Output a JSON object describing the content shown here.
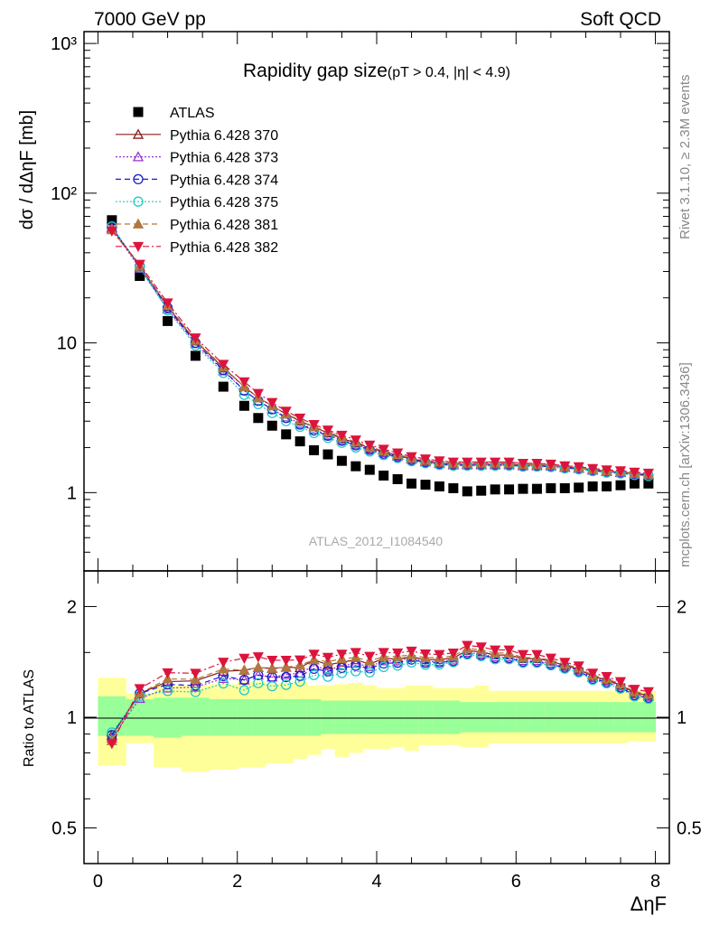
{
  "header": {
    "left": "7000 GeV pp",
    "right": "Soft QCD"
  },
  "side_labels": {
    "rivet": "Rivet 3.1.10, ≥ 2.3M events",
    "mcplots": "mcplots.cern.ch [arXiv:1306.3436]"
  },
  "watermark": "ATLAS_2012_I1084540",
  "chart_data": [
    {
      "type": "scatter",
      "title": "Rapidity gap size",
      "subtitle": "(pT > 0.4, |η| < 4.9)",
      "ylabel": "dσ / dΔηF [mb]",
      "xlabel": "ΔηF",
      "yscale": "log",
      "ylim": [
        0.3,
        1200
      ],
      "xlim": [
        -0.2,
        8.2
      ],
      "yticks": [
        {
          "value": 1,
          "label": "1"
        },
        {
          "value": 10,
          "label": "10"
        },
        {
          "value": 100,
          "label": "10²"
        },
        {
          "value": 1000,
          "label": "10³"
        }
      ],
      "legend_position": "top-left",
      "x": [
        0.2,
        0.6,
        1.0,
        1.4,
        1.8,
        2.1,
        2.3,
        2.5,
        2.7,
        2.9,
        3.1,
        3.3,
        3.5,
        3.7,
        3.9,
        4.1,
        4.3,
        4.5,
        4.7,
        4.9,
        5.1,
        5.3,
        5.5,
        5.7,
        5.9,
        6.1,
        6.3,
        6.5,
        6.7,
        6.9,
        7.1,
        7.3,
        7.5,
        7.7,
        7.9
      ],
      "series": [
        {
          "name": "ATLAS",
          "marker": "square",
          "color": "#000000",
          "line": "none",
          "values": [
            66,
            28,
            14,
            8.2,
            5.1,
            3.8,
            3.15,
            2.8,
            2.45,
            2.2,
            1.92,
            1.8,
            1.63,
            1.5,
            1.42,
            1.3,
            1.23,
            1.15,
            1.13,
            1.1,
            1.07,
            1.02,
            1.03,
            1.05,
            1.05,
            1.06,
            1.06,
            1.07,
            1.07,
            1.08,
            1.1,
            1.1,
            1.12,
            1.15,
            1.15
          ]
        },
        {
          "name": "Pythia 6.428 370",
          "marker": "triangle-open",
          "color": "#8b1a1a",
          "line": "solid",
          "values": [
            59,
            32.5,
            17.5,
            10.3,
            6.8,
            5.1,
            4.3,
            3.8,
            3.35,
            3.0,
            2.75,
            2.5,
            2.3,
            2.15,
            1.98,
            1.88,
            1.77,
            1.68,
            1.62,
            1.58,
            1.55,
            1.55,
            1.55,
            1.55,
            1.55,
            1.53,
            1.53,
            1.52,
            1.48,
            1.46,
            1.42,
            1.39,
            1.37,
            1.34,
            1.32
          ]
        },
        {
          "name": "Pythia 6.428 373",
          "marker": "triangle-open",
          "color": "#9932cc",
          "line": "dotted",
          "values": [
            58,
            31.5,
            16.8,
            9.9,
            6.5,
            4.8,
            4.1,
            3.6,
            3.2,
            2.9,
            2.65,
            2.42,
            2.25,
            2.1,
            1.95,
            1.85,
            1.75,
            1.67,
            1.6,
            1.56,
            1.53,
            1.53,
            1.53,
            1.53,
            1.53,
            1.51,
            1.51,
            1.5,
            1.47,
            1.45,
            1.41,
            1.38,
            1.36,
            1.33,
            1.31
          ]
        },
        {
          "name": "Pythia 6.428 374",
          "marker": "circle-open",
          "color": "#1a1acd",
          "line": "dashed",
          "values": [
            59,
            32.5,
            17.2,
            10.0,
            6.6,
            4.8,
            4.1,
            3.6,
            3.15,
            2.85,
            2.6,
            2.4,
            2.22,
            2.07,
            1.93,
            1.82,
            1.73,
            1.65,
            1.59,
            1.55,
            1.52,
            1.52,
            1.52,
            1.52,
            1.52,
            1.5,
            1.5,
            1.49,
            1.46,
            1.44,
            1.4,
            1.37,
            1.35,
            1.32,
            1.3
          ]
        },
        {
          "name": "Pythia 6.428 375",
          "marker": "circle-open",
          "color": "#20c8c8",
          "line": "dotted",
          "values": [
            60,
            32,
            16.5,
            9.6,
            6.3,
            4.5,
            3.9,
            3.4,
            3.0,
            2.75,
            2.5,
            2.32,
            2.15,
            2.0,
            1.88,
            1.78,
            1.7,
            1.62,
            1.57,
            1.53,
            1.51,
            1.51,
            1.51,
            1.51,
            1.51,
            1.49,
            1.49,
            1.48,
            1.45,
            1.43,
            1.39,
            1.36,
            1.34,
            1.31,
            1.29
          ]
        },
        {
          "name": "Pythia 6.428 381",
          "marker": "triangle",
          "color": "#b07840",
          "line": "dashed",
          "values": [
            57,
            32.5,
            17.8,
            10.4,
            6.9,
            5.1,
            4.3,
            3.8,
            3.35,
            3.05,
            2.75,
            2.55,
            2.35,
            2.18,
            2.02,
            1.9,
            1.8,
            1.7,
            1.64,
            1.6,
            1.57,
            1.57,
            1.57,
            1.57,
            1.57,
            1.54,
            1.54,
            1.53,
            1.49,
            1.47,
            1.43,
            1.4,
            1.38,
            1.35,
            1.33
          ]
        },
        {
          "name": "Pythia 6.428 382",
          "marker": "triangle-down",
          "color": "#dc143c",
          "line": "dashdot",
          "values": [
            56,
            33.5,
            18.5,
            10.8,
            7.2,
            5.5,
            4.6,
            4.0,
            3.5,
            3.15,
            2.85,
            2.62,
            2.42,
            2.25,
            2.08,
            1.95,
            1.84,
            1.74,
            1.68,
            1.63,
            1.6,
            1.6,
            1.6,
            1.6,
            1.6,
            1.57,
            1.57,
            1.55,
            1.51,
            1.49,
            1.45,
            1.42,
            1.4,
            1.37,
            1.35
          ]
        }
      ]
    },
    {
      "type": "scatter",
      "ylabel": "Ratio to ATLAS",
      "xlabel": "ΔηF",
      "yscale": "log",
      "ylim": [
        0.4,
        2.5
      ],
      "xlim": [
        -0.2,
        8.2
      ],
      "yticks": [
        {
          "value": 0.5,
          "label": "0.5"
        },
        {
          "value": 1,
          "label": "1"
        },
        {
          "value": 2,
          "label": "2"
        }
      ],
      "xticks": [
        {
          "value": 0,
          "label": "0"
        },
        {
          "value": 2,
          "label": "2"
        },
        {
          "value": 4,
          "label": "4"
        },
        {
          "value": 6,
          "label": "6"
        },
        {
          "value": 8,
          "label": "8"
        }
      ],
      "bands": {
        "x_edges": [
          0.0,
          0.4,
          0.8,
          1.2,
          1.6,
          2.0,
          2.2,
          2.4,
          2.6,
          2.8,
          3.0,
          3.2,
          3.4,
          3.6,
          3.8,
          4.0,
          4.2,
          4.4,
          4.6,
          4.8,
          5.0,
          5.2,
          5.4,
          5.6,
          5.8,
          6.0,
          6.2,
          6.4,
          6.6,
          6.8,
          7.0,
          7.2,
          7.4,
          7.6,
          7.8,
          8.0
        ],
        "total_lo": [
          0.74,
          0.85,
          0.73,
          0.71,
          0.72,
          0.73,
          0.73,
          0.75,
          0.75,
          0.77,
          0.79,
          0.82,
          0.78,
          0.8,
          0.82,
          0.82,
          0.83,
          0.81,
          0.84,
          0.84,
          0.84,
          0.83,
          0.83,
          0.85,
          0.85,
          0.85,
          0.85,
          0.85,
          0.85,
          0.85,
          0.85,
          0.85,
          0.85,
          0.86,
          0.86
        ],
        "total_hi": [
          1.28,
          1.16,
          1.22,
          1.22,
          1.23,
          1.25,
          1.25,
          1.23,
          1.24,
          1.25,
          1.22,
          1.22,
          1.23,
          1.24,
          1.22,
          1.2,
          1.2,
          1.22,
          1.22,
          1.2,
          1.2,
          1.2,
          1.22,
          1.18,
          1.18,
          1.18,
          1.18,
          1.18,
          1.18,
          1.18,
          1.18,
          1.18,
          1.18,
          1.18,
          1.18
        ],
        "stat_lo": [
          0.89,
          0.89,
          0.88,
          0.89,
          0.89,
          0.89,
          0.89,
          0.89,
          0.89,
          0.89,
          0.89,
          0.9,
          0.9,
          0.9,
          0.9,
          0.9,
          0.9,
          0.9,
          0.9,
          0.9,
          0.9,
          0.91,
          0.91,
          0.91,
          0.91,
          0.91,
          0.91,
          0.91,
          0.91,
          0.91,
          0.91,
          0.91,
          0.91,
          0.91,
          0.91
        ],
        "stat_hi": [
          1.14,
          1.12,
          1.13,
          1.13,
          1.12,
          1.12,
          1.12,
          1.12,
          1.12,
          1.12,
          1.12,
          1.11,
          1.11,
          1.11,
          1.11,
          1.11,
          1.11,
          1.11,
          1.11,
          1.11,
          1.11,
          1.1,
          1.1,
          1.1,
          1.1,
          1.1,
          1.1,
          1.1,
          1.1,
          1.1,
          1.1,
          1.1,
          1.1,
          1.1,
          1.1
        ],
        "total_color": "#ffff99",
        "stat_color": "#99ff99"
      }
    }
  ]
}
